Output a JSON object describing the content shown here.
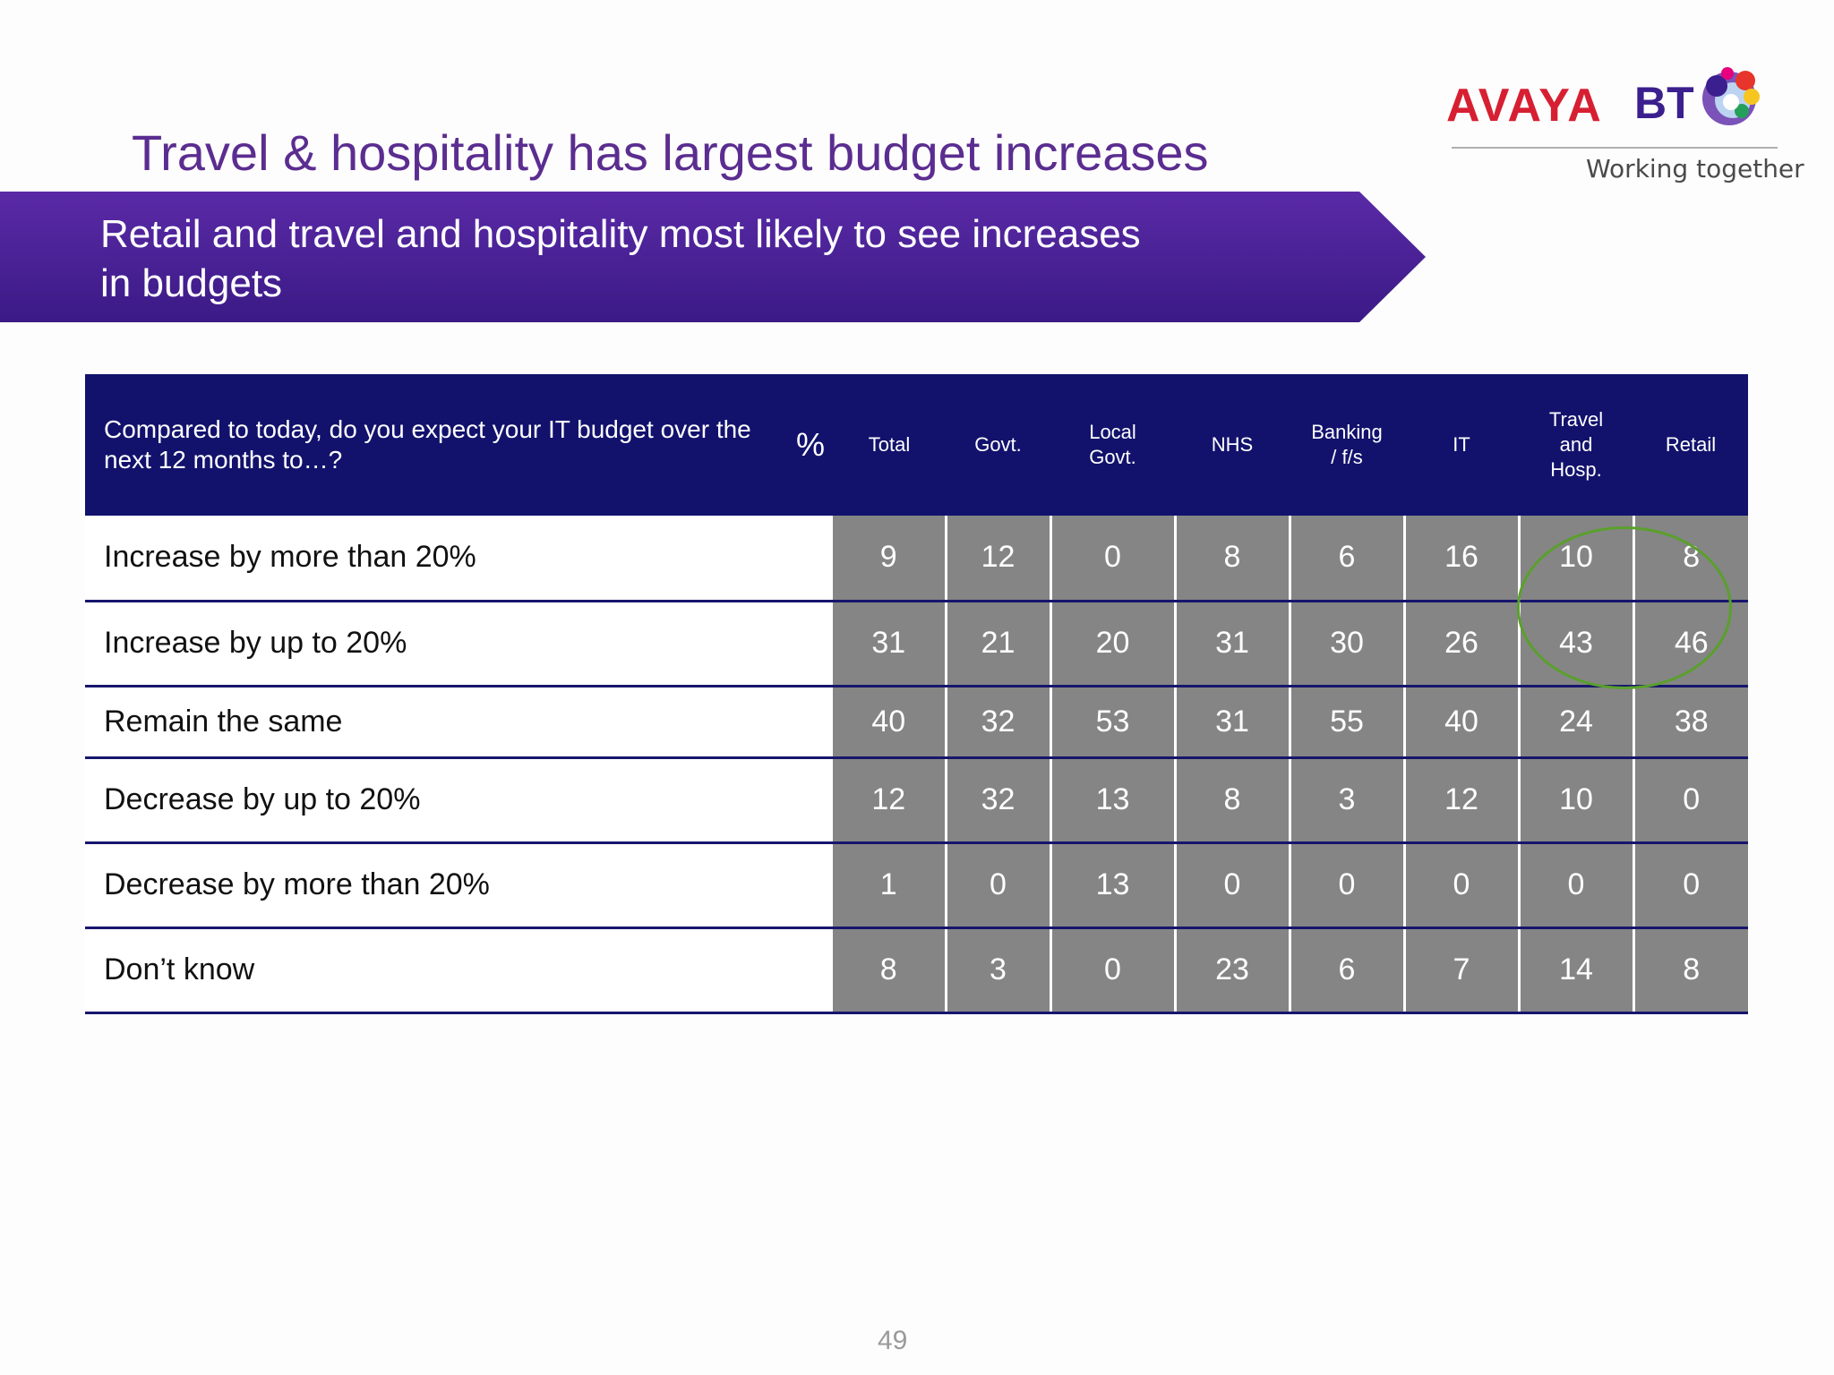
{
  "slide": {
    "title": "Travel & hospitality has largest budget increases",
    "banner_line1": "Retail and travel and hospitality most likely to see increases",
    "banner_line2": "in budgets",
    "page_number": "49"
  },
  "logo": {
    "brand1": "AVAYA",
    "brand2": "BT",
    "tagline": "Working together",
    "icons": [
      "bt-globe-icon"
    ]
  },
  "table": {
    "question": "Compared to today, do you expect your IT budget over the next 12 months to…?",
    "unit": "%",
    "columns": [
      [
        "Total"
      ],
      [
        "Govt."
      ],
      [
        "Local",
        "Govt."
      ],
      [
        "NHS"
      ],
      [
        "Banking",
        "/ f/s"
      ],
      [
        "IT"
      ],
      [
        "Travel",
        "and",
        "Hosp."
      ],
      [
        "Retail"
      ]
    ],
    "rows": [
      {
        "label": "Increase by more than 20%",
        "values": [
          "9",
          "12",
          "0",
          "8",
          "6",
          "16",
          "10",
          "8"
        ]
      },
      {
        "label": "Increase by up to 20%",
        "values": [
          "31",
          "21",
          "20",
          "31",
          "30",
          "26",
          "43",
          "46"
        ]
      },
      {
        "label": "Remain the same",
        "values": [
          "40",
          "32",
          "53",
          "31",
          "55",
          "40",
          "24",
          "38"
        ]
      },
      {
        "label": "Decrease by up to 20%",
        "values": [
          "12",
          "32",
          "13",
          "8",
          "3",
          "12",
          "10",
          "0"
        ]
      },
      {
        "label": "Decrease by more than 20%",
        "values": [
          "1",
          "0",
          "13",
          "0",
          "0",
          "0",
          "0",
          "0"
        ]
      },
      {
        "label": "Don’t know",
        "values": [
          "8",
          "3",
          "0",
          "23",
          "6",
          "7",
          "14",
          "8"
        ]
      }
    ]
  },
  "colors": {
    "title": "#5b2d90",
    "banner": "#4a22a0",
    "header": "#12126d",
    "cell": "#858585",
    "highlight": "#5aa02c"
  }
}
